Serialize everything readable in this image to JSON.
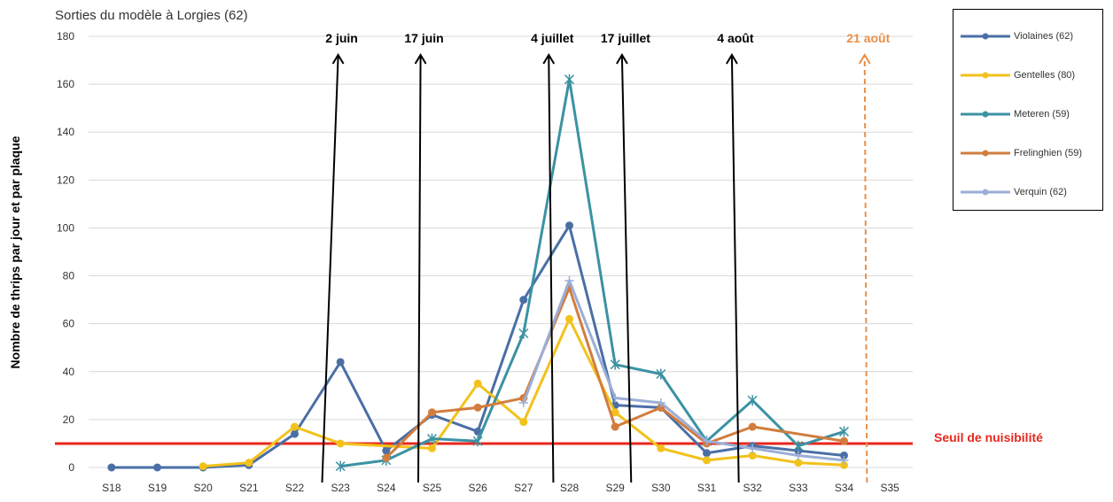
{
  "chart_data": {
    "type": "line",
    "title": "Sorties du modèle à Lorgies (62)",
    "xlabel": "",
    "ylabel": "Nombre de thrips par jour et par plaque",
    "categories": [
      "S18",
      "S19",
      "S20",
      "S21",
      "S22",
      "S23",
      "S24",
      "S25",
      "S26",
      "S27",
      "S28",
      "S29",
      "S30",
      "S31",
      "S32",
      "S33",
      "S34",
      "S35"
    ],
    "ylim": [
      0,
      180
    ],
    "yticks": [
      0,
      20,
      40,
      60,
      80,
      100,
      120,
      140,
      160,
      180
    ],
    "grid": true,
    "legend_position": "top-right",
    "series": [
      {
        "name": "Violaines (62)",
        "color": "#4a6fa5",
        "marker": "circle",
        "values": [
          0,
          0,
          0,
          1,
          14,
          44,
          7,
          22,
          15,
          70,
          101,
          26,
          25,
          6,
          9,
          7,
          5,
          null
        ]
      },
      {
        "name": "Gentelles (80)",
        "color": "#f2c21b",
        "marker": "circle",
        "values": [
          null,
          null,
          0.5,
          2,
          17,
          10,
          null,
          8,
          35,
          19,
          62,
          23,
          8,
          3,
          5,
          2,
          1,
          null
        ]
      },
      {
        "name": "Meteren (59)",
        "color": "#3b92a3",
        "marker": "star",
        "values": [
          null,
          null,
          null,
          null,
          null,
          0.5,
          3,
          12,
          11,
          56,
          162,
          43,
          39,
          11,
          28,
          9,
          15,
          null
        ]
      },
      {
        "name": "Frelinghien (59)",
        "color": "#d27d3d",
        "marker": "circle",
        "values": [
          null,
          null,
          null,
          null,
          null,
          null,
          4,
          23,
          25,
          29,
          75,
          17,
          25,
          10,
          17,
          null,
          11,
          null
        ]
      },
      {
        "name": "Verquin (62)",
        "color": "#9aaed6",
        "marker": "plus",
        "values": [
          null,
          null,
          null,
          null,
          null,
          null,
          null,
          null,
          null,
          27,
          78,
          29,
          27,
          11,
          8,
          5,
          3,
          null
        ]
      }
    ],
    "threshold": {
      "label": "Seuil de nuisibilité",
      "value": 10,
      "color": "#e8271d"
    },
    "annotations": [
      {
        "label": "2 juin",
        "x_from": 22.6,
        "x_to": 22.95,
        "color": "#000000",
        "style": "solid"
      },
      {
        "label": "17 juin",
        "x_from": 24.7,
        "x_to": 24.75,
        "color": "#000000",
        "style": "solid"
      },
      {
        "label": "4 juillet",
        "x_from": 27.65,
        "x_to": 27.55,
        "color": "#000000",
        "style": "solid"
      },
      {
        "label": "17 juillet",
        "x_from": 29.35,
        "x_to": 29.15,
        "color": "#000000",
        "style": "solid"
      },
      {
        "label": "4 août",
        "x_from": 31.7,
        "x_to": 31.55,
        "color": "#000000",
        "style": "solid"
      },
      {
        "label": "21 août",
        "x_from": 34.5,
        "x_to": 34.45,
        "color": "#e8904a",
        "style": "dashed"
      }
    ]
  }
}
